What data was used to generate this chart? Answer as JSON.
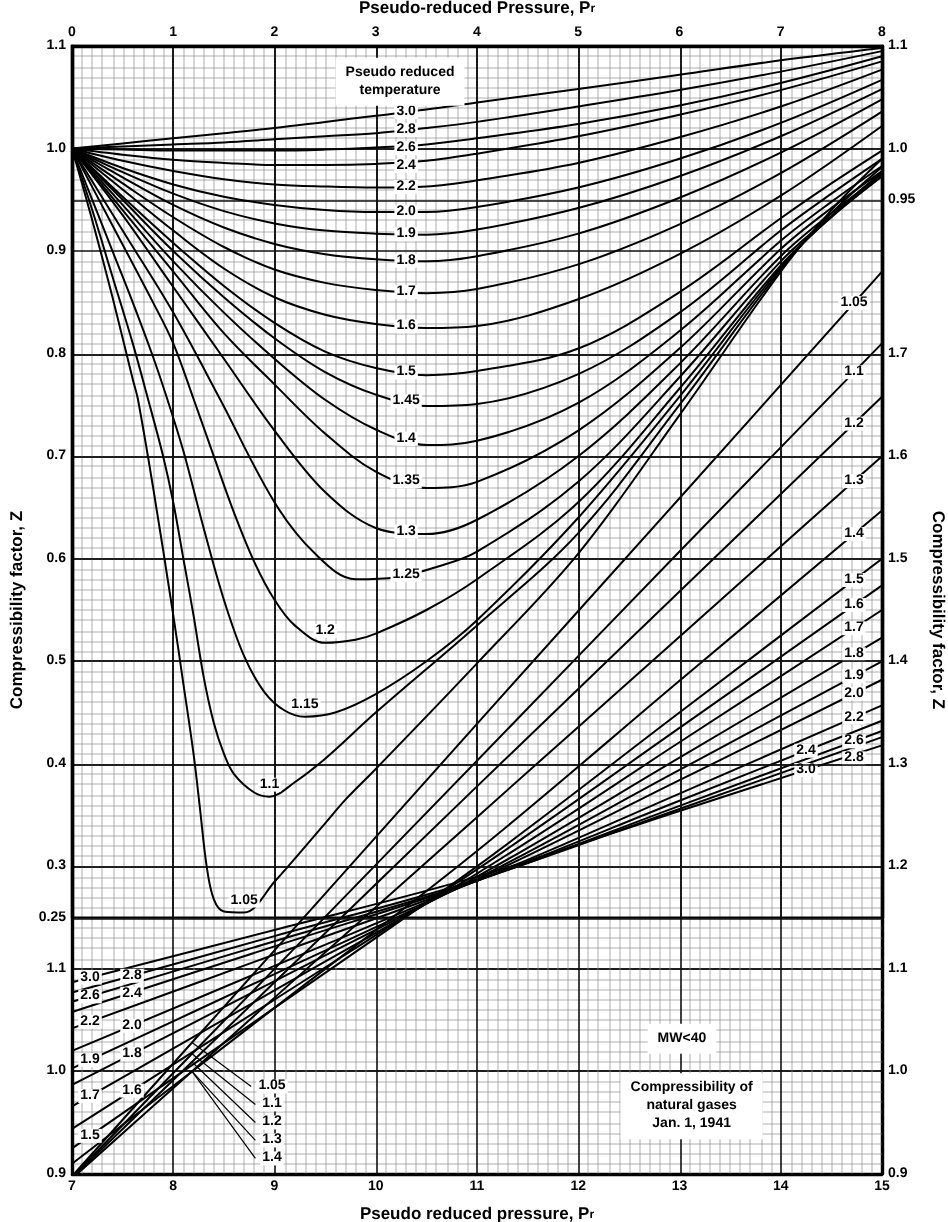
{
  "chart_data": [
    {
      "type": "line",
      "xlabel": "Pseudo-reduced Pressure, P$_{r}$",
      "xlim": [
        0,
        8
      ],
      "xticks": [
        0,
        1,
        2,
        3,
        4,
        5,
        6,
        7,
        8
      ],
      "ylim": [
        0.25,
        1.1
      ],
      "yticks": [
        0.25,
        0.3,
        0.4,
        0.5,
        0.6,
        0.7,
        0.8,
        0.9,
        {
          "value": 1.0,
          "label": "1.0"
        },
        1.1
      ],
      "y2lim": [
        0.25,
        1.1
      ],
      "y2ticks": [
        0.95,
        {
          "value": 1.0,
          "label": "1.0"
        },
        1.1
      ],
      "grid": true,
      "marker": "none",
      "line_style": "solid",
      "annotations": [
        "Pseudo reduced\ntemperature"
      ],
      "series": [
        {
          "name": "1.05",
          "color": "#000000",
          "x": [
            0,
            0.2,
            0.4,
            0.6,
            0.65,
            0.8,
            1.0,
            1.1,
            1.2,
            1.26,
            1.33,
            1.4,
            1.5,
            1.7,
            2.0,
            2.5,
            2.71,
            3.0,
            4,
            5,
            6,
            7,
            7.5,
            8
          ],
          "values": [
            1.0,
            0.93,
            0.855,
            0.775,
            0.756,
            0.67,
            0.545,
            0.478,
            0.41,
            0.36,
            0.3,
            0.268,
            0.256,
            0.255,
            0.285,
            0.342,
            0.366,
            0.395,
            0.498,
            0.605,
            0.74,
            0.88,
            0.94,
            0.99
          ]
        },
        {
          "name": "1.1",
          "color": "#000000",
          "x": [
            0,
            0.2,
            0.4,
            0.6,
            0.75,
            0.9,
            1.0,
            1.1,
            1.2,
            1.3,
            1.4,
            1.5,
            1.6,
            1.8,
            1.95,
            2.2,
            2.5,
            3.0,
            4,
            5,
            6,
            7,
            7.5,
            8
          ],
          "values": [
            1.0,
            0.94,
            0.875,
            0.81,
            0.756,
            0.7,
            0.655,
            0.6,
            0.545,
            0.485,
            0.44,
            0.41,
            0.39,
            0.372,
            0.368,
            0.382,
            0.405,
            0.45,
            0.535,
            0.625,
            0.75,
            0.882,
            0.937,
            0.982
          ]
        },
        {
          "name": "1.15",
          "color": "#000000",
          "x": [
            0,
            0.2,
            0.4,
            0.6,
            0.8,
            0.94,
            1.1,
            1.3,
            1.5,
            1.7,
            1.9,
            2.1,
            2.3,
            2.6,
            3.0,
            3.5,
            4,
            5,
            6,
            7,
            7.5,
            8
          ],
          "values": [
            1.0,
            0.95,
            0.9,
            0.85,
            0.797,
            0.756,
            0.705,
            0.63,
            0.56,
            0.505,
            0.47,
            0.452,
            0.446,
            0.45,
            0.468,
            0.5,
            0.54,
            0.64,
            0.758,
            0.884,
            0.934,
            0.977
          ]
        },
        {
          "name": "1.2",
          "color": "#000000",
          "x": [
            0,
            0.4,
            0.8,
            1.0,
            1.2,
            1.4,
            1.6,
            1.8,
            2.0,
            2.2,
            2.5,
            2.8,
            3.0,
            3.5,
            4,
            5,
            6,
            7,
            7.5,
            8
          ],
          "values": [
            1.0,
            0.925,
            0.85,
            0.81,
            0.756,
            0.7,
            0.645,
            0.597,
            0.56,
            0.535,
            0.518,
            0.521,
            0.527,
            0.55,
            0.58,
            0.655,
            0.766,
            0.886,
            0.933,
            0.973
          ]
        },
        {
          "name": "1.25",
          "color": "#000000",
          "x": [
            0,
            0.5,
            1,
            1.46,
            2,
            2.4,
            2.8,
            3.2,
            3.6,
            4,
            5,
            6,
            7,
            7.5,
            8
          ],
          "values": [
            1.0,
            0.92,
            0.84,
            0.756,
            0.655,
            0.605,
            0.58,
            0.582,
            0.592,
            0.607,
            0.675,
            0.777,
            0.89,
            0.934,
            0.973
          ]
        },
        {
          "name": "1.3",
          "color": "#000000",
          "x": [
            0,
            0.5,
            1,
            1.5,
            2,
            2.5,
            3,
            3.5,
            4,
            5,
            6,
            7,
            7.5,
            8
          ],
          "values": [
            1.0,
            0.935,
            0.865,
            0.795,
            0.725,
            0.665,
            0.63,
            0.624,
            0.638,
            0.7,
            0.79,
            0.895,
            0.937,
            0.975
          ]
        },
        {
          "name": "1.35",
          "color": "#000000",
          "x": [
            0,
            0.5,
            1,
            1.5,
            2,
            2.5,
            3,
            3.5,
            4,
            5,
            6,
            7,
            7.5,
            8
          ],
          "values": [
            1.0,
            0.94,
            0.88,
            0.82,
            0.77,
            0.722,
            0.685,
            0.669,
            0.675,
            0.725,
            0.805,
            0.902,
            0.942,
            0.978
          ]
        },
        {
          "name": "1.4",
          "color": "#000000",
          "x": [
            0,
            0.5,
            1,
            1.5,
            2,
            2.5,
            3,
            3.5,
            4,
            5,
            6,
            7,
            7.5,
            8
          ],
          "values": [
            1.0,
            0.945,
            0.89,
            0.84,
            0.795,
            0.755,
            0.726,
            0.711,
            0.715,
            0.752,
            0.822,
            0.91,
            0.948,
            0.983
          ]
        },
        {
          "name": "1.45",
          "color": "#000000",
          "x": [
            0,
            0.5,
            1,
            1.5,
            2,
            2.5,
            3,
            3.5,
            4,
            5,
            6,
            7,
            7.5,
            8
          ],
          "values": [
            1.0,
            0.95,
            0.9,
            0.855,
            0.815,
            0.782,
            0.76,
            0.749,
            0.751,
            0.78,
            0.84,
            0.92,
            0.956,
            0.99
          ]
        },
        {
          "name": "1.5",
          "color": "#000000",
          "x": [
            0,
            0.5,
            1,
            1.5,
            2,
            2.5,
            3,
            3.5,
            4,
            5,
            6,
            7,
            7.5,
            8
          ],
          "values": [
            1.0,
            0.953,
            0.908,
            0.866,
            0.83,
            0.802,
            0.786,
            0.779,
            0.783,
            0.805,
            0.86,
            0.932,
            0.966,
            0.998
          ]
        },
        {
          "name": "1.6",
          "color": "#000000",
          "x": [
            0,
            0.5,
            1,
            1.5,
            2,
            2.5,
            3,
            3.5,
            4,
            5,
            6,
            7,
            8
          ],
          "values": [
            1.0,
            0.96,
            0.92,
            0.883,
            0.855,
            0.838,
            0.829,
            0.825,
            0.827,
            0.853,
            0.897,
            0.954,
            1.022
          ]
        },
        {
          "name": "1.7",
          "color": "#000000",
          "x": [
            0,
            0.5,
            1,
            1.5,
            2,
            2.5,
            3,
            3.5,
            4,
            5,
            6,
            7,
            8
          ],
          "values": [
            1.0,
            0.966,
            0.933,
            0.904,
            0.882,
            0.869,
            0.862,
            0.859,
            0.863,
            0.887,
            0.926,
            0.976,
            1.036
          ]
        },
        {
          "name": "1.8",
          "color": "#000000",
          "x": [
            0,
            0.5,
            1,
            1.5,
            2,
            2.5,
            3,
            3.5,
            4,
            5,
            6,
            7,
            8
          ],
          "values": [
            1.0,
            0.972,
            0.945,
            0.923,
            0.907,
            0.897,
            0.892,
            0.89,
            0.895,
            0.917,
            0.952,
            0.996,
            1.048
          ]
        },
        {
          "name": "1.9",
          "color": "#000000",
          "x": [
            0,
            0.5,
            1,
            1.5,
            2,
            2.5,
            3,
            3.5,
            4,
            5,
            6,
            7,
            8
          ],
          "values": [
            1.0,
            0.977,
            0.956,
            0.939,
            0.927,
            0.92,
            0.917,
            0.916,
            0.921,
            0.942,
            0.973,
            1.012,
            1.058
          ]
        },
        {
          "name": "2.0",
          "color": "#000000",
          "x": [
            0,
            0.5,
            1,
            1.5,
            2,
            2.5,
            3,
            3.5,
            4,
            5,
            6,
            7,
            8
          ],
          "values": [
            1.0,
            0.981,
            0.965,
            0.953,
            0.945,
            0.94,
            0.938,
            0.938,
            0.943,
            0.962,
            0.99,
            1.025,
            1.067
          ]
        },
        {
          "name": "2.2",
          "color": "#000000",
          "x": [
            0,
            0.5,
            1,
            1.5,
            2,
            2.5,
            3,
            3.5,
            4,
            5,
            6,
            7,
            8
          ],
          "values": [
            1.0,
            0.988,
            0.978,
            0.97,
            0.965,
            0.963,
            0.962,
            0.963,
            0.969,
            0.986,
            1.011,
            1.041,
            1.077
          ]
        },
        {
          "name": "2.4",
          "color": "#000000",
          "x": [
            0,
            0.5,
            1,
            1.5,
            2,
            2.5,
            3,
            3.5,
            4,
            5,
            6,
            7,
            8
          ],
          "values": [
            1.0,
            0.994,
            0.989,
            0.986,
            0.984,
            0.984,
            0.985,
            0.988,
            0.995,
            1.012,
            1.033,
            1.057,
            1.085
          ]
        },
        {
          "name": "2.6",
          "color": "#000000",
          "x": [
            0,
            0.5,
            1,
            1.5,
            2,
            2.5,
            3,
            3.5,
            4,
            5,
            6,
            7,
            8
          ],
          "values": [
            1.0,
            0.999,
            0.998,
            0.998,
            0.998,
            0.999,
            1.001,
            1.004,
            1.01,
            1.024,
            1.042,
            1.064,
            1.09
          ]
        },
        {
          "name": "2.8",
          "color": "#000000",
          "x": [
            0,
            0.5,
            1,
            1.5,
            2,
            2.5,
            3,
            3.5,
            4,
            5,
            6,
            7,
            8
          ],
          "values": [
            1.0,
            1.002,
            1.004,
            1.006,
            1.009,
            1.012,
            1.015,
            1.02,
            1.026,
            1.041,
            1.057,
            1.075,
            1.095
          ]
        },
        {
          "name": "3.0",
          "color": "#000000",
          "x": [
            0,
            0.5,
            1,
            1.5,
            2,
            2.5,
            3,
            3.5,
            4,
            5,
            6,
            7,
            8
          ],
          "values": [
            1.0,
            1.005,
            1.01,
            1.015,
            1.02,
            1.026,
            1.032,
            1.038,
            1.045,
            1.058,
            1.072,
            1.086,
            1.098
          ]
        }
      ]
    },
    {
      "type": "line",
      "xlabel": "Pseudo reduced pressure, P$_{r}$",
      "ylabel": "Compressibility factor, Z",
      "y2label": "Compressibility factor, Z",
      "xlim": [
        7,
        15
      ],
      "xticks": [
        7,
        8,
        9,
        10,
        11,
        12,
        13,
        14,
        15
      ],
      "ylim": [
        0.9,
        2.0
      ],
      "yticks": [
        0.9,
        {
          "value": 1.0,
          "label": "1.0"
        },
        1.1
      ],
      "y2lim": [
        0.9,
        2.0
      ],
      "y2ticks": [
        0.9,
        {
          "value": 1.0,
          "label": "1.0"
        },
        1.1,
        1.2,
        1.3,
        1.4,
        1.5,
        1.6,
        1.7
      ],
      "grid": true,
      "marker": "none",
      "line_style": "solid",
      "annotations": [
        "MW<40",
        "Compressibility of\nnatural gases\nJan. 1, 1941"
      ],
      "series": [
        {
          "name": "1.05",
          "color": "#000000",
          "x": [
            7.02,
            9,
            11,
            13,
            15
          ],
          "values": [
            0.9,
            1.118,
            1.339,
            1.559,
            1.78
          ]
        },
        {
          "name": "1.1",
          "color": "#000000",
          "x": [
            7.03,
            9,
            11,
            13,
            15
          ],
          "values": [
            0.9,
            1.1,
            1.303,
            1.507,
            1.71
          ]
        },
        {
          "name": "1.2",
          "color": "#000000",
          "x": [
            7.04,
            9,
            11,
            13,
            15
          ],
          "values": [
            0.9,
            1.087,
            1.278,
            1.468,
            1.658
          ]
        },
        {
          "name": "1.3",
          "color": "#000000",
          "x": [
            7.05,
            9,
            11,
            13,
            15
          ],
          "values": [
            0.9,
            1.072,
            1.248,
            1.424,
            1.6
          ]
        },
        {
          "name": "1.4",
          "color": "#000000",
          "x": [
            7,
            9,
            11,
            13,
            15
          ],
          "values": [
            0.91,
            1.062,
            1.215,
            1.381,
            1.547
          ]
        },
        {
          "name": "1.5",
          "color": "#000000",
          "x": [
            7,
            9,
            11,
            13,
            15
          ],
          "values": [
            0.925,
            1.062,
            1.2,
            1.35,
            1.5
          ]
        },
        {
          "name": "1.6",
          "color": "#000000",
          "x": [
            7,
            9,
            11,
            13,
            15
          ],
          "values": [
            0.944,
            1.07,
            1.197,
            1.335,
            1.474
          ]
        },
        {
          "name": "1.7",
          "color": "#000000",
          "x": [
            7,
            9,
            11,
            13,
            15
          ],
          "values": [
            0.966,
            1.079,
            1.193,
            1.321,
            1.45
          ]
        },
        {
          "name": "1.8",
          "color": "#000000",
          "x": [
            7,
            9,
            11,
            13,
            15
          ],
          "values": [
            0.987,
            1.088,
            1.19,
            1.306,
            1.423
          ]
        },
        {
          "name": "1.9",
          "color": "#000000",
          "x": [
            7,
            9,
            11,
            13,
            15
          ],
          "values": [
            1.003,
            1.095,
            1.188,
            1.294,
            1.4
          ]
        },
        {
          "name": "2.0",
          "color": "#000000",
          "x": [
            7,
            9,
            11,
            13,
            15
          ],
          "values": [
            1.02,
            1.103,
            1.187,
            1.284,
            1.382
          ]
        },
        {
          "name": "2.2",
          "color": "#000000",
          "x": [
            7,
            9,
            11,
            13,
            15
          ],
          "values": [
            1.042,
            1.114,
            1.186,
            1.271,
            1.357
          ]
        },
        {
          "name": "2.4",
          "color": "#000000",
          "x": [
            7,
            9,
            11,
            13,
            15
          ],
          "values": [
            1.058,
            1.122,
            1.186,
            1.264,
            1.342
          ]
        },
        {
          "name": "2.6",
          "color": "#000000",
          "x": [
            7,
            9,
            11,
            13,
            15
          ],
          "values": [
            1.068,
            1.127,
            1.186,
            1.259,
            1.332
          ]
        },
        {
          "name": "2.8",
          "color": "#000000",
          "x": [
            7,
            9,
            11,
            13,
            15
          ],
          "values": [
            1.077,
            1.132,
            1.187,
            1.256,
            1.326
          ]
        },
        {
          "name": "3.0",
          "color": "#000000",
          "x": [
            7,
            9,
            11,
            13,
            15
          ],
          "values": [
            1.087,
            1.138,
            1.19,
            1.254,
            1.318
          ]
        }
      ]
    }
  ]
}
